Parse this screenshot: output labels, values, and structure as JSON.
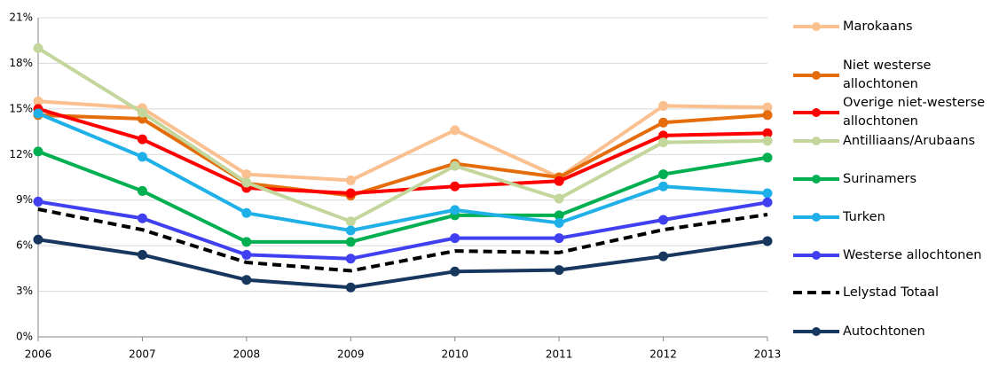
{
  "chart_data": {
    "type": "line",
    "categories": [
      "2006",
      "2007",
      "2008",
      "2009",
      "2010",
      "2011",
      "2012",
      "2013"
    ],
    "ylim": [
      0,
      21
    ],
    "yticks": [
      {
        "value": 0,
        "label": "0%"
      },
      {
        "value": 3,
        "label": "3%"
      },
      {
        "value": 6,
        "label": "6%"
      },
      {
        "value": 9,
        "label": "9%"
      },
      {
        "value": 12,
        "label": "12%"
      },
      {
        "value": 15,
        "label": "15%"
      },
      {
        "value": 18,
        "label": "18%"
      },
      {
        "value": 21,
        "label": "21%"
      }
    ],
    "grid": true,
    "legend": "right",
    "series": [
      {
        "name": "Marokaans",
        "color": "#fac090",
        "values": [
          15.5,
          15.05,
          10.7,
          10.3,
          13.6,
          10.5,
          15.2,
          15.1
        ]
      },
      {
        "name": "Niet westerse allochtonen",
        "color": "#e46c0a",
        "values": [
          14.6,
          14.35,
          10.1,
          9.3,
          11.4,
          10.5,
          14.1,
          14.6
        ]
      },
      {
        "name": "Overige niet-westerse allochtonen",
        "color": "#ff0000",
        "values": [
          15.0,
          13.0,
          9.8,
          9.45,
          9.9,
          10.25,
          13.25,
          13.4
        ]
      },
      {
        "name": "Antilliaans/Arubaans",
        "color": "#c3d69b",
        "values": [
          19.0,
          14.75,
          10.15,
          7.6,
          11.25,
          9.1,
          12.8,
          12.9
        ]
      },
      {
        "name": "Surinamers",
        "color": "#00b050",
        "values": [
          12.2,
          9.6,
          6.25,
          6.25,
          8.0,
          8.0,
          10.7,
          11.8
        ]
      },
      {
        "name": "Turken",
        "color": "#1fb0e8",
        "values": [
          14.7,
          11.85,
          8.15,
          7.0,
          8.35,
          7.5,
          9.9,
          9.45
        ]
      },
      {
        "name": "Westerse allochtonen",
        "color": "#4040f0",
        "values": [
          8.9,
          7.8,
          5.4,
          5.15,
          6.5,
          6.5,
          7.7,
          8.85
        ]
      },
      {
        "name": "Lelystad Totaal",
        "color": "#000000",
        "dashed": true,
        "values": [
          8.4,
          7.05,
          4.9,
          4.35,
          5.65,
          5.55,
          7.05,
          8.05
        ]
      },
      {
        "name": "Autochtonen",
        "color": "#17375e",
        "values": [
          6.4,
          5.4,
          3.75,
          3.25,
          4.3,
          4.4,
          5.3,
          6.3
        ]
      }
    ]
  }
}
